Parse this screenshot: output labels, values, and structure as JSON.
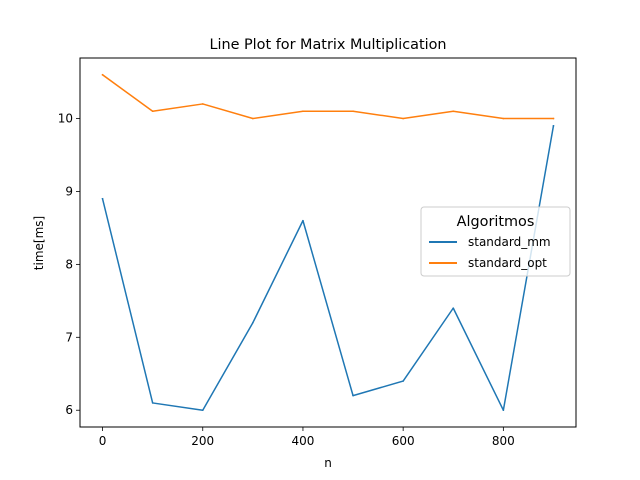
{
  "chart_data": {
    "type": "line",
    "title": "Line Plot for Matrix Multiplication",
    "xlabel": "n",
    "ylabel": "time[ms]",
    "x": [
      0,
      100,
      200,
      300,
      400,
      500,
      600,
      700,
      800,
      900
    ],
    "xlim": [
      -45,
      945
    ],
    "ylim": [
      5.77,
      10.83
    ],
    "xticks": [
      0,
      200,
      400,
      600,
      800
    ],
    "yticks": [
      6,
      7,
      8,
      9,
      10
    ],
    "grid": false,
    "legend": {
      "title": "Algoritmos",
      "placement": "center-right"
    },
    "series": [
      {
        "name": "standard_mm",
        "color": "#1f77b4",
        "values": [
          8.9,
          6.1,
          6.0,
          7.2,
          8.6,
          6.2,
          6.4,
          7.4,
          6.0,
          9.9
        ]
      },
      {
        "name": "standard_opt",
        "color": "#ff7f0e",
        "values": [
          10.6,
          10.1,
          10.2,
          10.0,
          10.1,
          10.1,
          10.0,
          10.1,
          10.0,
          10.0
        ]
      }
    ]
  }
}
